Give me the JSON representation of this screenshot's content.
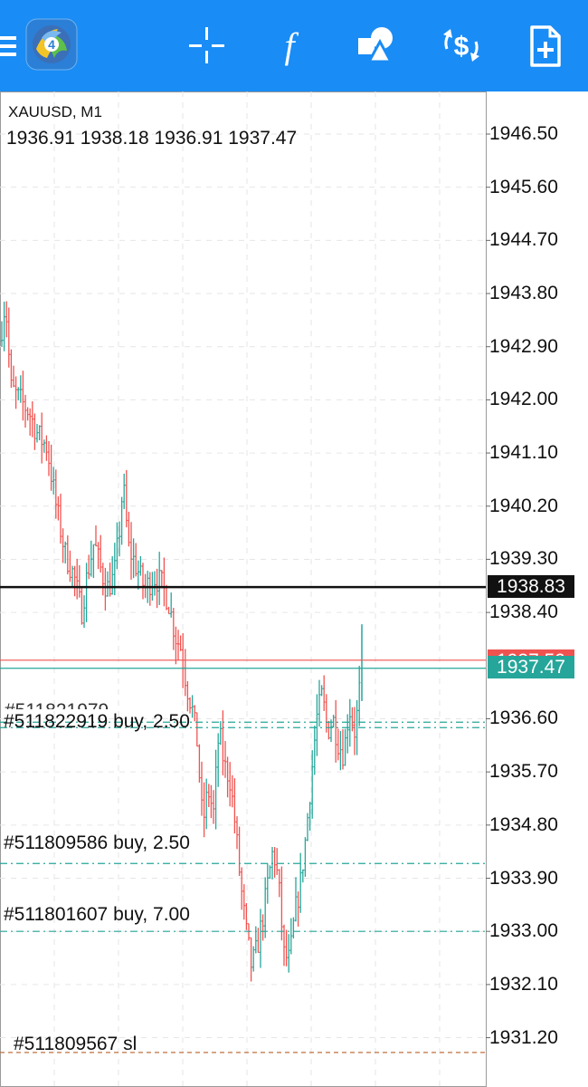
{
  "toolbar": {
    "buttons": [
      {
        "name": "menu-button",
        "icon": "hamburger-menu-icon"
      },
      {
        "name": "app-logo",
        "icon": "metatrader-logo-icon",
        "badge": "4"
      },
      {
        "name": "crosshair-button",
        "icon": "crosshair-icon"
      },
      {
        "name": "indicators-button",
        "icon": "function-f-icon",
        "glyph": "f"
      },
      {
        "name": "objects-button",
        "icon": "shapes-icon"
      },
      {
        "name": "new-order-button",
        "icon": "dollar-trade-icon",
        "glyph": "$"
      },
      {
        "name": "templates-button",
        "icon": "add-document-icon"
      }
    ],
    "background": "#1a8cf5"
  },
  "chart": {
    "symbol": "XAUUSD, M1",
    "ohlc": "1936.91 1938.18 1936.91 1937.47",
    "price_scale": [
      "1946.50",
      "1945.60",
      "1944.70",
      "1943.80",
      "1942.90",
      "1942.00",
      "1941.10",
      "1940.20",
      "1939.30",
      "1938.40",
      "1936.60",
      "1935.70",
      "1934.80",
      "1933.90",
      "1933.00",
      "1932.10",
      "1931.20"
    ],
    "bid_line": {
      "price": "1937.47",
      "color": "#26a69a"
    },
    "ask_line": {
      "price": "1937.50",
      "color": "#ef5350"
    },
    "black_line": {
      "price": "1938.83",
      "color": "#111111"
    },
    "orders": [
      {
        "label": "#511822919 buy, 2.50",
        "partial_label": "#511821979",
        "price": 1936.45,
        "type": "buy",
        "color": "#26a69a"
      },
      {
        "label": "#511809586 buy, 2.50",
        "price": 1934.15,
        "type": "buy",
        "color": "#26a69a"
      },
      {
        "label": "#511801607 buy, 7.00",
        "price": 1933.0,
        "type": "buy",
        "color": "#26a69a"
      },
      {
        "label": "#511809567 sl",
        "price": 1930.95,
        "type": "sl",
        "color": "#c07040"
      }
    ],
    "up_color": "#26a69a",
    "down_color": "#ef5350"
  }
}
